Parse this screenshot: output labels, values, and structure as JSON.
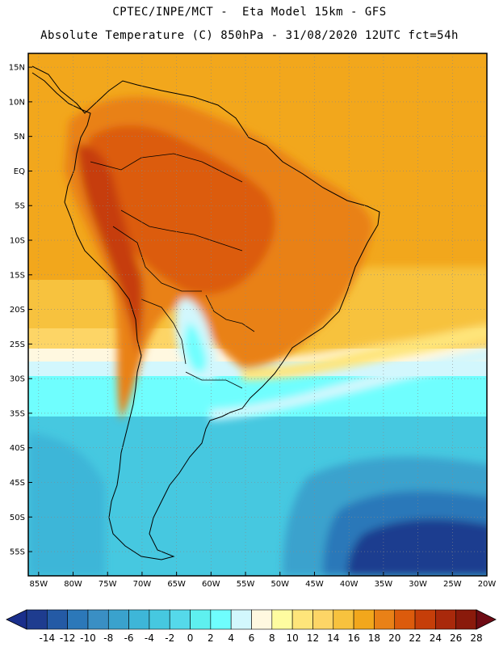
{
  "header": {
    "line1": "CPTEC/INPE/MCT -  Eta Model 15km - GFS",
    "line2": "Absolute Temperature (C) 850hPa - 31/08/2020 12UTC fct=54h"
  },
  "map": {
    "lat_labels": [
      "15N",
      "10N",
      "5N",
      "EQ",
      "5S",
      "10S",
      "15S",
      "20S",
      "25S",
      "30S",
      "35S",
      "40S",
      "45S",
      "50S",
      "55S"
    ],
    "lat_values": [
      15,
      10,
      5,
      0,
      -5,
      -10,
      -15,
      -20,
      -25,
      -30,
      -35,
      -40,
      -45,
      -50,
      -55
    ],
    "lon_labels": [
      "85W",
      "80W",
      "75W",
      "70W",
      "65W",
      "60W",
      "55W",
      "50W",
      "45W",
      "40W",
      "35W",
      "30W",
      "25W",
      "20W"
    ],
    "lon_values": [
      -85,
      -80,
      -75,
      -70,
      -65,
      -60,
      -55,
      -50,
      -45,
      -40,
      -35,
      -30,
      -25,
      -20
    ],
    "lon_range": [
      -86.5,
      -20
    ],
    "lat_range": [
      -58.5,
      17
    ]
  },
  "colorbar": {
    "labels": [
      "-14",
      "-12",
      "-10",
      "-8",
      "-6",
      "-4",
      "-2",
      "0",
      "2",
      "4",
      "6",
      "8",
      "10",
      "12",
      "14",
      "16",
      "18",
      "20",
      "22",
      "24",
      "26",
      "28"
    ],
    "under_color": "#1a2f8c",
    "over_color": "#6e0b14",
    "colors": [
      "#1e3c8f",
      "#245aa5",
      "#2c78b9",
      "#3a8fc4",
      "#3aa2cd",
      "#3eb6d8",
      "#46c8e0",
      "#55d9ea",
      "#5ef0ef",
      "#6ffefe",
      "#d2f7fd",
      "#fff8e0",
      "#fefca0",
      "#fee57a",
      "#fdd566",
      "#f7c23e",
      "#f2a71c",
      "#e98117",
      "#dc5b0c",
      "#c63e09",
      "#a9290b",
      "#8a1a0b"
    ]
  },
  "field_colors": {
    "ocean_warm": "#f2a71c",
    "tropics_land": "#e98117",
    "hot_core": "#dc5b0c",
    "andes": "#c63e09",
    "mild": "#fee57a",
    "pale": "#fff8e0",
    "cool": "#6ffefe",
    "cold": "#46c8e0",
    "colder": "#3aa2cd",
    "deep": "#245aa5",
    "deepest": "#1e3c8f"
  }
}
